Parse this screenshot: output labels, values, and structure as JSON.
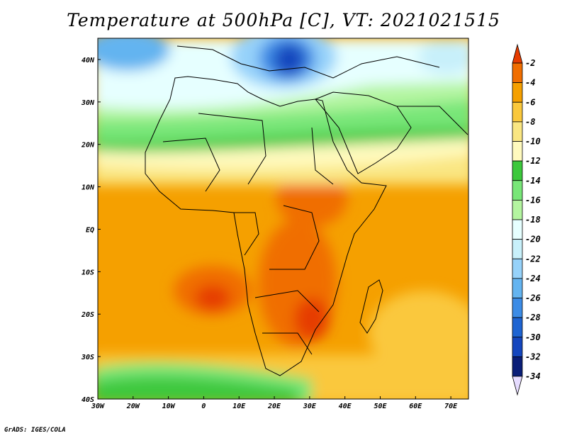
{
  "title": "Temperature at 500hPa [C], VT: 2021021515",
  "credit": "GrADS: IGES/COLA",
  "map": {
    "lon_range": [
      -30,
      75
    ],
    "lat_range": [
      -40,
      45
    ],
    "lat_ticks": [
      "40N",
      "30N",
      "20N",
      "10N",
      "EQ",
      "10S",
      "20S",
      "30S",
      "40S"
    ],
    "lon_ticks": [
      "30W",
      "20W",
      "10W",
      "0",
      "10E",
      "20E",
      "30E",
      "40E",
      "50E",
      "60E",
      "70E"
    ]
  },
  "colorbar": {
    "labels": [
      "-2",
      "-4",
      "-6",
      "-8",
      "-10",
      "-12",
      "-14",
      "-16",
      "-18",
      "-20",
      "-22",
      "-24",
      "-26",
      "-28",
      "-30",
      "-32",
      "-34"
    ],
    "colors": [
      "#e63c00",
      "#f06e00",
      "#f5a000",
      "#fac83c",
      "#fae682",
      "#fffabe",
      "#3cc83c",
      "#78e678",
      "#b4f5a0",
      "#e6ffff",
      "#c8f0fa",
      "#96d2fa",
      "#64b4f0",
      "#3c8ce6",
      "#1e64d2",
      "#1446be",
      "#0a1e78",
      "#e6dcff"
    ]
  }
}
